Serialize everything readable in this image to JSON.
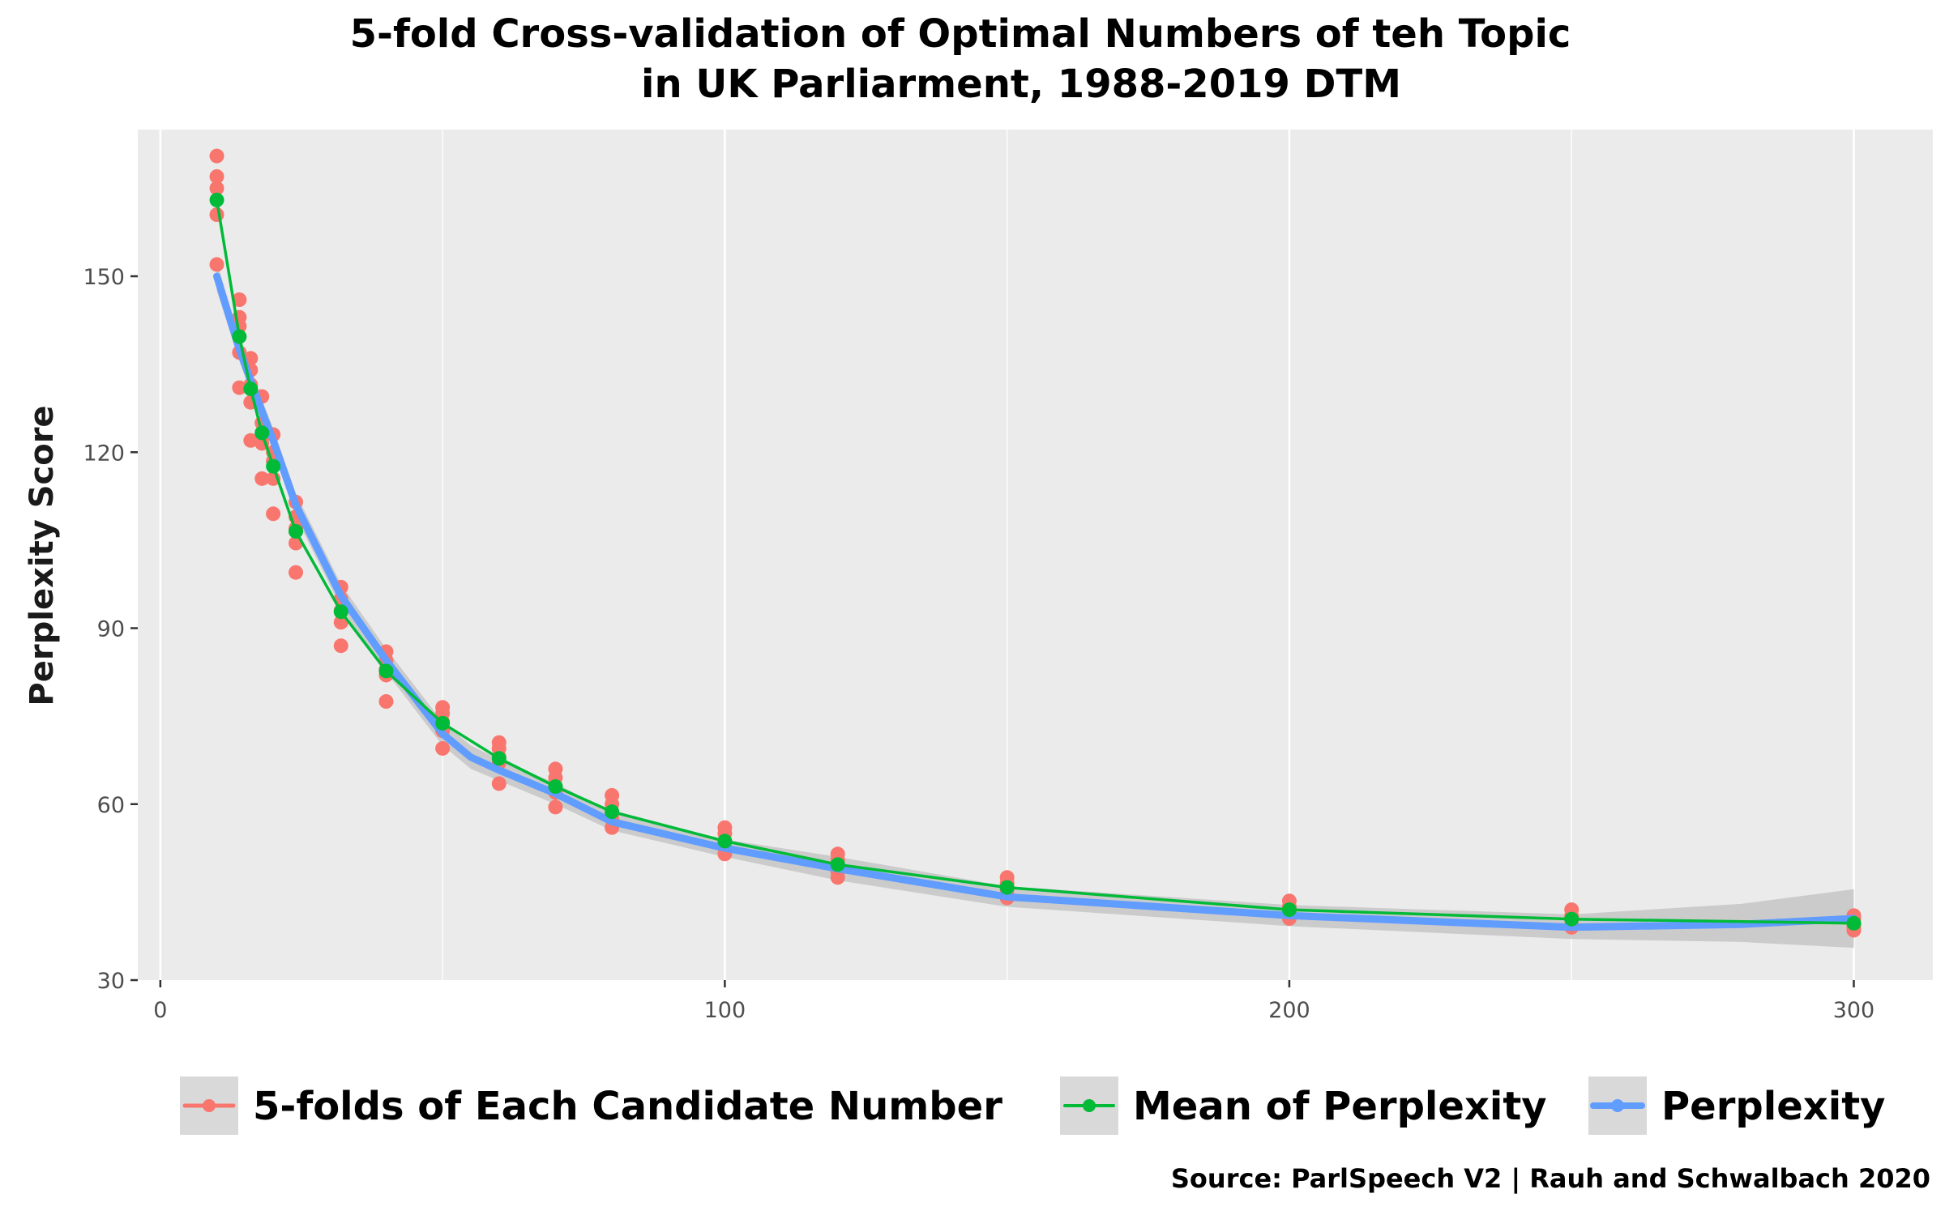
{
  "chart_data": {
    "type": "line",
    "title_lines": [
      "5-fold Cross-validation of Optimal Numbers of teh Topic",
      "in UK Parliarment, 1988-2019 DTM"
    ],
    "xlabel": "",
    "ylabel": "Perplexity Score",
    "caption": "Source: ParlSpeech V2 | Rauh and Schwalbach 2020",
    "xlim": [
      -4,
      314
    ],
    "ylim": [
      30,
      175
    ],
    "x_ticks": [
      0,
      100,
      200,
      300
    ],
    "x_tick_labels": [
      "0",
      "100",
      "200",
      "300"
    ],
    "y_ticks": [
      30,
      60,
      90,
      120,
      150
    ],
    "y_tick_labels": [
      "30",
      "60",
      "90",
      "120",
      "150"
    ],
    "grid": true,
    "legend_position": "bottom",
    "colors": {
      "panel": "#ebebeb",
      "grid": "#ffffff",
      "folds": "#f8766d",
      "mean": "#00ba38",
      "perplexity": "#619cff",
      "ribbon": "#c8c8c8",
      "legend_key": "#d9d9d9"
    },
    "series": [
      {
        "name": "5-folds of Each Candidate Number",
        "kind": "points",
        "points": [
          [
            10,
            170.5
          ],
          [
            10,
            167
          ],
          [
            10,
            165
          ],
          [
            10,
            160.5
          ],
          [
            10,
            152
          ],
          [
            14,
            146
          ],
          [
            14,
            143
          ],
          [
            14,
            141.5
          ],
          [
            14,
            137
          ],
          [
            14,
            131
          ],
          [
            16,
            136
          ],
          [
            16,
            134
          ],
          [
            16,
            131.5
          ],
          [
            16,
            128.5
          ],
          [
            16,
            122
          ],
          [
            18,
            129.5
          ],
          [
            18,
            125
          ],
          [
            18,
            123
          ],
          [
            18,
            121.5
          ],
          [
            18,
            115.5
          ],
          [
            20,
            123
          ],
          [
            20,
            120
          ],
          [
            20,
            118.5
          ],
          [
            20,
            115.5
          ],
          [
            20,
            109.5
          ],
          [
            24,
            111.5
          ],
          [
            24,
            109
          ],
          [
            24,
            107
          ],
          [
            24,
            104.5
          ],
          [
            24,
            99.5
          ],
          [
            32,
            97
          ],
          [
            32,
            95
          ],
          [
            32,
            93
          ],
          [
            32,
            91
          ],
          [
            32,
            87
          ],
          [
            40,
            86
          ],
          [
            40,
            84.5
          ],
          [
            40,
            83
          ],
          [
            40,
            82
          ],
          [
            40,
            77.5
          ],
          [
            50,
            76.5
          ],
          [
            50,
            75.5
          ],
          [
            50,
            74
          ],
          [
            50,
            72.5
          ],
          [
            50,
            69.5
          ],
          [
            60,
            70.5
          ],
          [
            60,
            69.5
          ],
          [
            60,
            68
          ],
          [
            60,
            67
          ],
          [
            60,
            63.5
          ],
          [
            70,
            66
          ],
          [
            70,
            64.5
          ],
          [
            70,
            63
          ],
          [
            70,
            62
          ],
          [
            70,
            59.5
          ],
          [
            80,
            61.5
          ],
          [
            80,
            60
          ],
          [
            80,
            58.5
          ],
          [
            80,
            57.5
          ],
          [
            80,
            56
          ],
          [
            100,
            56
          ],
          [
            100,
            55
          ],
          [
            100,
            53.5
          ],
          [
            100,
            52.5
          ],
          [
            100,
            51.5
          ],
          [
            120,
            51.5
          ],
          [
            120,
            50.5
          ],
          [
            120,
            49.5
          ],
          [
            120,
            48.5
          ],
          [
            120,
            47.5
          ],
          [
            150,
            47.5
          ],
          [
            150,
            46.5
          ],
          [
            150,
            45.5
          ],
          [
            150,
            44.5
          ],
          [
            150,
            44
          ],
          [
            200,
            43.5
          ],
          [
            200,
            42.5
          ],
          [
            200,
            41.5
          ],
          [
            200,
            41
          ],
          [
            200,
            40.5
          ],
          [
            250,
            42
          ],
          [
            250,
            41
          ],
          [
            250,
            40.5
          ],
          [
            250,
            39.5
          ],
          [
            250,
            39
          ],
          [
            300,
            41
          ],
          [
            300,
            40.5
          ],
          [
            300,
            39.5
          ],
          [
            300,
            39
          ],
          [
            300,
            38.5
          ]
        ]
      },
      {
        "name": "Mean of Perplexity",
        "kind": "line-points",
        "x": [
          10,
          14,
          16,
          18,
          20,
          24,
          32,
          40,
          50,
          60,
          70,
          80,
          100,
          120,
          150,
          200,
          250,
          300
        ],
        "y": [
          163,
          139.7,
          130.8,
          123.3,
          117.6,
          106.5,
          92.8,
          82.7,
          73.8,
          67.8,
          63,
          58.7,
          53.7,
          49.7,
          45.8,
          42,
          40.4,
          39.7
        ]
      },
      {
        "name": "Perplexity",
        "kind": "smooth",
        "x": [
          10,
          14,
          18,
          20,
          24,
          32,
          40,
          50,
          55,
          60,
          70,
          80,
          100,
          120,
          150,
          200,
          250,
          280,
          300
        ],
        "y": [
          150,
          137.5,
          127,
          122,
          111,
          95.5,
          84.5,
          72,
          68,
          65.8,
          61.8,
          57,
          52.5,
          49,
          44.2,
          41,
          39,
          39.5,
          40.5
        ],
        "ribbon_low": [
          147.5,
          135.5,
          125,
          120,
          109,
          93.5,
          82.5,
          70,
          66,
          64,
          60,
          55.5,
          51,
          47,
          42.5,
          39.2,
          37,
          36.5,
          35.5
        ],
        "ribbon_high": [
          152.5,
          139.5,
          129,
          124,
          113,
          97.5,
          86.5,
          74,
          70,
          67.6,
          63.6,
          58.5,
          54,
          51,
          46,
          42.8,
          41.2,
          43,
          45.5
        ]
      }
    ]
  }
}
